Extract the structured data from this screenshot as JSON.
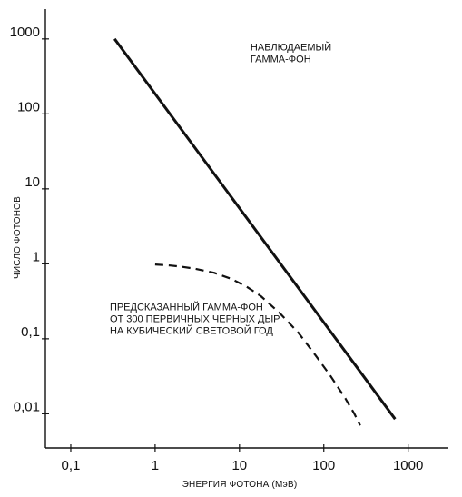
{
  "chart_data": {
    "type": "line",
    "title": "",
    "xlabel": "ЭНЕРГИЯ ФОТОНА (МэВ)",
    "ylabel": "ЧИСЛО ФОТОНОВ",
    "x_scale": "log",
    "y_scale": "log",
    "xlim": [
      0.05,
      3000
    ],
    "ylim": [
      0.0035,
      2500
    ],
    "x_ticks": [
      0.1,
      1,
      10,
      100,
      1000
    ],
    "x_tick_labels": [
      "0,1",
      "1",
      "10",
      "100",
      "1000"
    ],
    "y_ticks": [
      0.01,
      0.1,
      1,
      10,
      100,
      1000
    ],
    "y_tick_labels": [
      "0,01",
      "0,1",
      "1",
      "10",
      "100",
      "1000"
    ],
    "grid": false,
    "series": [
      {
        "name": "",
        "style": "solid",
        "color": "#111111",
        "points": [
          [
            0.33,
            1000
          ],
          [
            700,
            0.0085
          ]
        ]
      },
      {
        "name": "",
        "style": "dashed",
        "color": "#111111",
        "points": [
          [
            1,
            0.98
          ],
          [
            1.5,
            0.95
          ],
          [
            2,
            0.92
          ],
          [
            3,
            0.86
          ],
          [
            5,
            0.76
          ],
          [
            8,
            0.63
          ],
          [
            12,
            0.5
          ],
          [
            18,
            0.37
          ],
          [
            30,
            0.22
          ],
          [
            50,
            0.12
          ],
          [
            80,
            0.06
          ],
          [
            120,
            0.032
          ],
          [
            180,
            0.016
          ],
          [
            230,
            0.01
          ],
          [
            270,
            0.007
          ]
        ]
      }
    ],
    "annotations": [
      {
        "lines": [
          "НАБЛЮДАЕМЫЙ",
          "ГАММА-ФОН"
        ],
        "anchor": [
          13.5,
          700
        ],
        "align": "start"
      },
      {
        "lines": [
          "ПРЕДСКАЗАННЫЙ ГАММА-ФОН",
          "ОТ 300 ПЕРВИЧНЫХ ЧЕРНЫХ ДЫР",
          "НА КУБИЧЕСКИЙ СВЕТОВОЙ ГОД"
        ],
        "anchor": [
          0.29,
          0.24
        ],
        "align": "start"
      }
    ]
  }
}
